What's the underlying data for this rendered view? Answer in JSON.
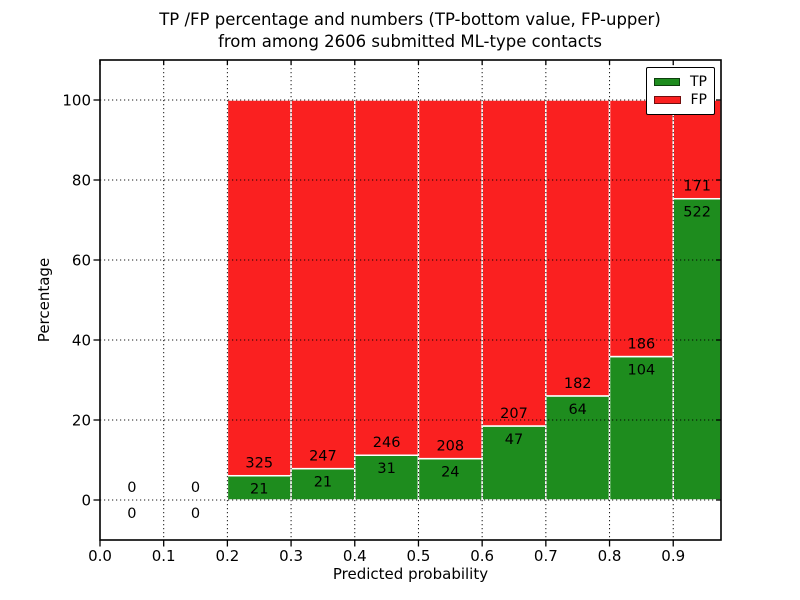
{
  "title": {
    "line1": "TP /FP percentage and numbers (TP-bottom value, FP-upper)",
    "line2": "from among 2606 submitted ML-type contacts"
  },
  "chart_data": {
    "type": "bar",
    "stacked": true,
    "title": "TP /FP percentage and numbers (TP-bottom value, FP-upper)\nfrom among 2606 submitted ML-type contacts",
    "xlabel": "Predicted probability",
    "ylabel": "Percentage",
    "total_submitted_contacts": 2606,
    "xlim": [
      0.0,
      0.975
    ],
    "ylim": [
      -10,
      110
    ],
    "grid": "dotted",
    "bar_width": 0.1,
    "xticks": [
      0.0,
      0.1,
      0.2,
      0.3,
      0.4,
      0.5,
      0.6,
      0.7,
      0.8,
      0.9
    ],
    "xtick_labels": [
      "0.0",
      "0.1",
      "0.2",
      "0.3",
      "0.4",
      "0.5",
      "0.6",
      "0.7",
      "0.8",
      "0.9"
    ],
    "yticks": [
      0,
      20,
      40,
      60,
      80,
      100
    ],
    "ytick_labels": [
      "0",
      "20",
      "40",
      "60",
      "80",
      "100"
    ],
    "colors": {
      "tp": "#1e8c1e",
      "fp": "#fa2020"
    },
    "legend": {
      "position": "upper right",
      "entries": [
        {
          "label": "TP",
          "color": "#1e8c1e"
        },
        {
          "label": "FP",
          "color": "#fa2020"
        }
      ]
    },
    "bins": [
      {
        "range": "0.0-0.1",
        "x_start": 0.0,
        "tp": 0,
        "fp": 0,
        "tp_pct": null
      },
      {
        "range": "0.1-0.2",
        "x_start": 0.1,
        "tp": 0,
        "fp": 0,
        "tp_pct": null
      },
      {
        "range": "0.2-0.3",
        "x_start": 0.2,
        "tp": 21,
        "fp": 325,
        "tp_pct": 6.07
      },
      {
        "range": "0.3-0.4",
        "x_start": 0.3,
        "tp": 21,
        "fp": 247,
        "tp_pct": 7.84
      },
      {
        "range": "0.4-0.5",
        "x_start": 0.4,
        "tp": 31,
        "fp": 246,
        "tp_pct": 11.19
      },
      {
        "range": "0.5-0.6",
        "x_start": 0.5,
        "tp": 24,
        "fp": 208,
        "tp_pct": 10.34
      },
      {
        "range": "0.6-0.7",
        "x_start": 0.6,
        "tp": 47,
        "fp": 207,
        "tp_pct": 18.5
      },
      {
        "range": "0.7-0.8",
        "x_start": 0.7,
        "tp": 64,
        "fp": 182,
        "tp_pct": 26.02
      },
      {
        "range": "0.8-0.9",
        "x_start": 0.8,
        "tp": 104,
        "fp": 186,
        "tp_pct": 35.86
      },
      {
        "range": "0.9-1.0",
        "x_start": 0.9,
        "tp": 522,
        "fp": 171,
        "tp_pct": 75.32
      }
    ]
  }
}
